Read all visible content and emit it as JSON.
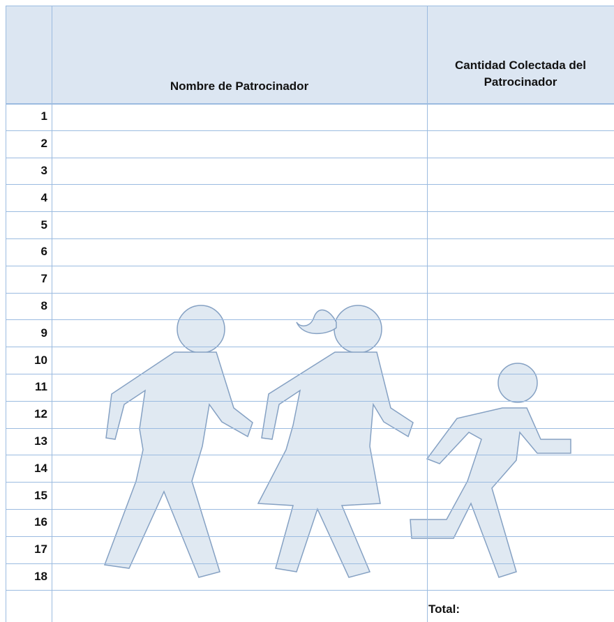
{
  "header": {
    "columns": [
      "Nombre de Patrocinador",
      "Cantidad Colectada del Patrocinador"
    ]
  },
  "table": {
    "rows": [
      "1",
      "2",
      "3",
      "4",
      "5",
      "6",
      "7",
      "8",
      "9",
      "10",
      "11",
      "12",
      "13",
      "14",
      "15",
      "16",
      "17",
      "18"
    ]
  },
  "footer": {
    "total_label": "Total:"
  }
}
